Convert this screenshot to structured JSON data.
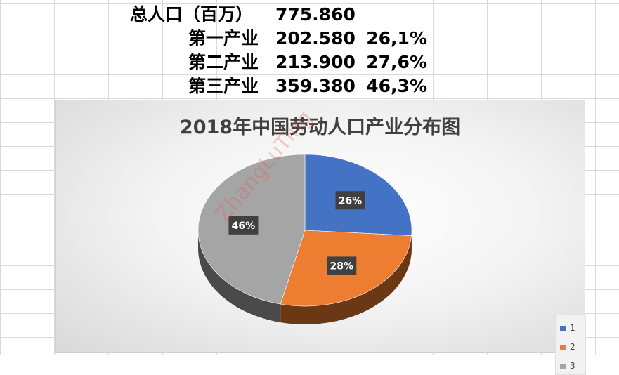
{
  "table": {
    "rows": [
      {
        "label": "总人口（百万）",
        "value": "775.860",
        "pct": ""
      },
      {
        "label": "第一产业",
        "value": "202.580",
        "pct": "26,1%"
      },
      {
        "label": "第二产业",
        "value": "213.900",
        "pct": "27,6%"
      },
      {
        "label": "第三产业",
        "value": "359.380",
        "pct": "46,3%"
      }
    ]
  },
  "chart_data": {
    "type": "pie",
    "title": "2018年中国劳动人口产业分布图",
    "categories": [
      "1",
      "2",
      "3"
    ],
    "values": [
      202.58,
      213.9,
      359.38
    ],
    "data_labels": [
      "26%",
      "28%",
      "46%"
    ],
    "colors": [
      "#4472c4",
      "#ed7d31",
      "#a5a5a5"
    ],
    "legend": "right",
    "style": "3d"
  },
  "watermark": "ZhangLuTing"
}
